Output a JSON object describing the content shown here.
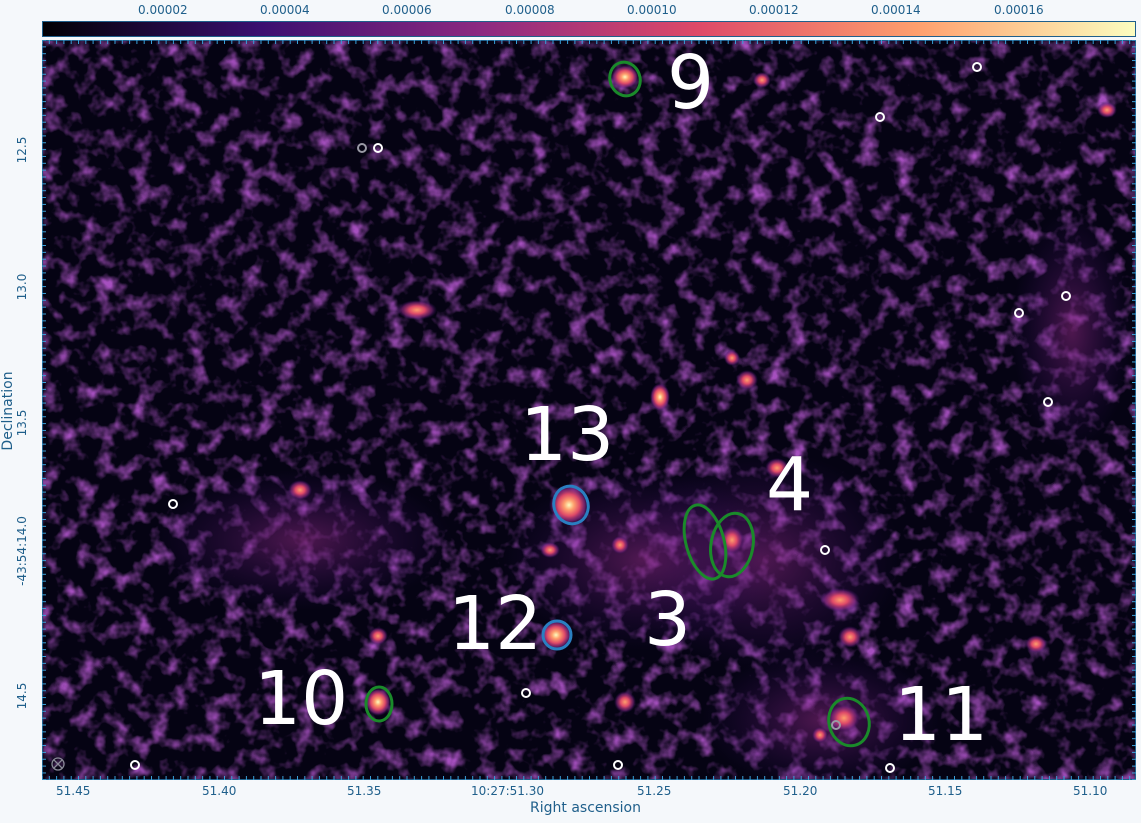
{
  "colorbar": {
    "ticks": [
      "0.00002",
      "0.00004",
      "0.00006",
      "0.00008",
      "0.00010",
      "0.00012",
      "0.00014",
      "0.00016"
    ],
    "colors": [
      "#000004",
      "#3b0f70",
      "#8c2981",
      "#de4968",
      "#fe9f6d",
      "#fcfdbf"
    ]
  },
  "axes": {
    "xlabel": "Right ascension",
    "ylabel": "Declination",
    "xticks": [
      "51.45",
      "51.40",
      "51.35",
      "10:27:51.30",
      "51.25",
      "51.20",
      "51.15",
      "51.10"
    ],
    "yticks": [
      "12.5",
      "13.0",
      "13.5",
      "-43:54:14.0",
      "14.5"
    ]
  },
  "annotations": {
    "labels": [
      "9",
      "13",
      "4",
      "12",
      "3",
      "10",
      "11"
    ],
    "contour_colors": {
      "green": "#1a8a2a",
      "blue": "#2a7fc1",
      "marker": "#ffffff"
    }
  }
}
